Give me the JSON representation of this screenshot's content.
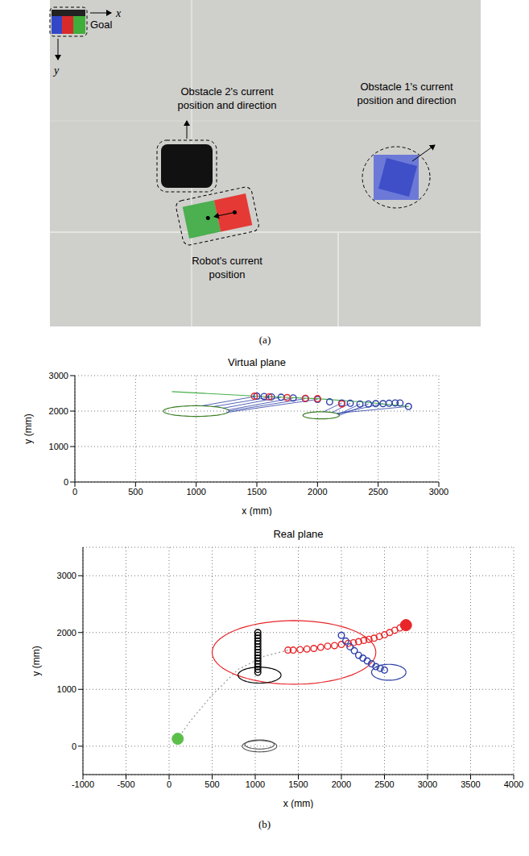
{
  "panel_a": {
    "goal": "Goal",
    "x_axis": "x",
    "y_axis": "y",
    "obstacle_2": "Obstacle 2's current position and direction",
    "obstacle_1": "Obstacle 1's current position and direction",
    "robot": "Robot's current position",
    "caption": "(a)"
  },
  "caption_b": "(b)",
  "chart_data": [
    {
      "type": "scatter",
      "title": "Virtual plane",
      "x_label": "x (mm)",
      "y_label": "y (mm)",
      "xlim": [
        0,
        3000
      ],
      "ylim": [
        0,
        3000
      ],
      "xticks": [
        0,
        500,
        1000,
        1500,
        2000,
        2500,
        3000
      ],
      "yticks": [
        0,
        1000,
        2000,
        3000
      ],
      "grid": true,
      "series": [
        {
          "type": "ellipse",
          "color": "#3a7d22",
          "center": [
            1000,
            2000
          ],
          "radii": [
            270,
            150
          ]
        },
        {
          "type": "ellipse",
          "color": "#3a7d22",
          "center": [
            2030,
            1880
          ],
          "radii": [
            150,
            100
          ]
        },
        {
          "type": "segments",
          "color": "#2b3fa6",
          "x1": [
            1500,
            1620,
            1700,
            1800,
            1900,
            2000,
            2200,
            2270,
            2350,
            2420,
            2540,
            2750
          ],
          "y1": [
            2420,
            2400,
            2390,
            2370,
            2350,
            2330,
            2230,
            2220,
            2200,
            2200,
            2210,
            2130
          ],
          "x2": [
            1050,
            1150,
            1220,
            1260,
            1270,
            1250,
            2050,
            2120,
            2170,
            2180,
            2170,
            2160
          ],
          "y2": [
            2150,
            2130,
            2080,
            2030,
            2000,
            1960,
            1980,
            1960,
            1900,
            1880,
            1930,
            1940
          ]
        },
        {
          "type": "line",
          "color": "#47b04b",
          "line_style": "solid",
          "x": [
            800,
            1500,
            2000,
            2400,
            2750
          ],
          "y": [
            2550,
            2420,
            2350,
            2250,
            2130
          ]
        },
        {
          "type": "scatter",
          "color": "#2b3fa6",
          "marker": "circle",
          "x": [
            2750,
            2680,
            2640,
            2590,
            2540,
            2480,
            2420,
            2350,
            2270,
            2200,
            2100,
            2000,
            1900,
            1800,
            1700,
            1620,
            1560,
            1500
          ],
          "y": [
            2130,
            2230,
            2230,
            2220,
            2210,
            2210,
            2200,
            2200,
            2220,
            2230,
            2260,
            2330,
            2350,
            2370,
            2390,
            2400,
            2410,
            2420
          ]
        },
        {
          "type": "scatter",
          "color": "#e8262a",
          "marker": "circle",
          "x": [
            2200,
            2000,
            1900,
            1750,
            1600,
            1480
          ],
          "y": [
            2200,
            2350,
            2360,
            2380,
            2400,
            2420
          ]
        }
      ]
    },
    {
      "type": "scatter",
      "title": "Real plane",
      "x_label": "x (mm)",
      "y_label": "y (mm)",
      "xlim": [
        -1000,
        4000
      ],
      "ylim": [
        -500,
        3500
      ],
      "xticks": [
        -1000,
        -500,
        0,
        500,
        1000,
        1500,
        2000,
        2500,
        3000,
        3500,
        4000
      ],
      "yticks": [
        0,
        1000,
        2000,
        3000
      ],
      "grid": true,
      "series": [
        {
          "type": "line",
          "color": "#999999",
          "line_style": "dotted",
          "x": [
            1380,
            1100,
            800,
            500,
            250,
            100
          ],
          "y": [
            1690,
            1580,
            1350,
            900,
            450,
            130
          ]
        },
        {
          "type": "ellipse",
          "color": "#e8262a",
          "center": [
            1450,
            1650
          ],
          "radii": [
            950,
            560
          ]
        },
        {
          "type": "ellipse",
          "color": "#000000",
          "center": [
            1050,
            1250
          ],
          "radii": [
            250,
            140
          ]
        },
        {
          "type": "ellipse",
          "color": "#555555",
          "center": [
            1050,
            30
          ],
          "radii": [
            170,
            80
          ]
        },
        {
          "type": "ellipse",
          "color": "#555555",
          "center": [
            1050,
            0
          ],
          "radii": [
            200,
            100
          ]
        },
        {
          "type": "ellipse",
          "color": "#2b3fa6",
          "center": [
            2550,
            1300
          ],
          "radii": [
            200,
            140
          ]
        },
        {
          "type": "scatter",
          "color": "#e8262a",
          "marker": "circle",
          "x": [
            2750,
            2680,
            2620,
            2560,
            2500,
            2440,
            2380,
            2320,
            2260,
            2200,
            2140,
            2080,
            2000,
            1920,
            1840,
            1760,
            1680,
            1600,
            1520,
            1440,
            1380
          ],
          "y": [
            2130,
            2080,
            2040,
            2000,
            1960,
            1930,
            1900,
            1880,
            1860,
            1840,
            1820,
            1810,
            1790,
            1770,
            1760,
            1740,
            1720,
            1710,
            1700,
            1690,
            1690
          ]
        },
        {
          "type": "scatter",
          "color": "#2b3fa6",
          "marker": "circle",
          "x": [
            2000,
            2050,
            2100,
            2150,
            2200,
            2250,
            2300,
            2350,
            2400,
            2450,
            2500
          ],
          "y": [
            1950,
            1850,
            1750,
            1680,
            1600,
            1550,
            1500,
            1450,
            1400,
            1370,
            1340
          ]
        },
        {
          "type": "scatter",
          "color": "#000000",
          "marker": "circle",
          "x": [
            1030,
            1030,
            1030,
            1030,
            1030,
            1030,
            1030,
            1030,
            1030,
            1030,
            1030,
            1030,
            1030,
            1030,
            1030
          ],
          "y": [
            2000,
            1950,
            1900,
            1850,
            1800,
            1750,
            1700,
            1650,
            1600,
            1550,
            1500,
            1450,
            1400,
            1350,
            1300
          ]
        },
        {
          "type": "scatter",
          "color": "#e8262a",
          "marker": "filled_circle",
          "x": [
            2750
          ],
          "y": [
            2130
          ]
        },
        {
          "type": "scatter",
          "color": "#5cbf4a",
          "marker": "filled_circle",
          "x": [
            100
          ],
          "y": [
            130
          ]
        }
      ]
    }
  ]
}
